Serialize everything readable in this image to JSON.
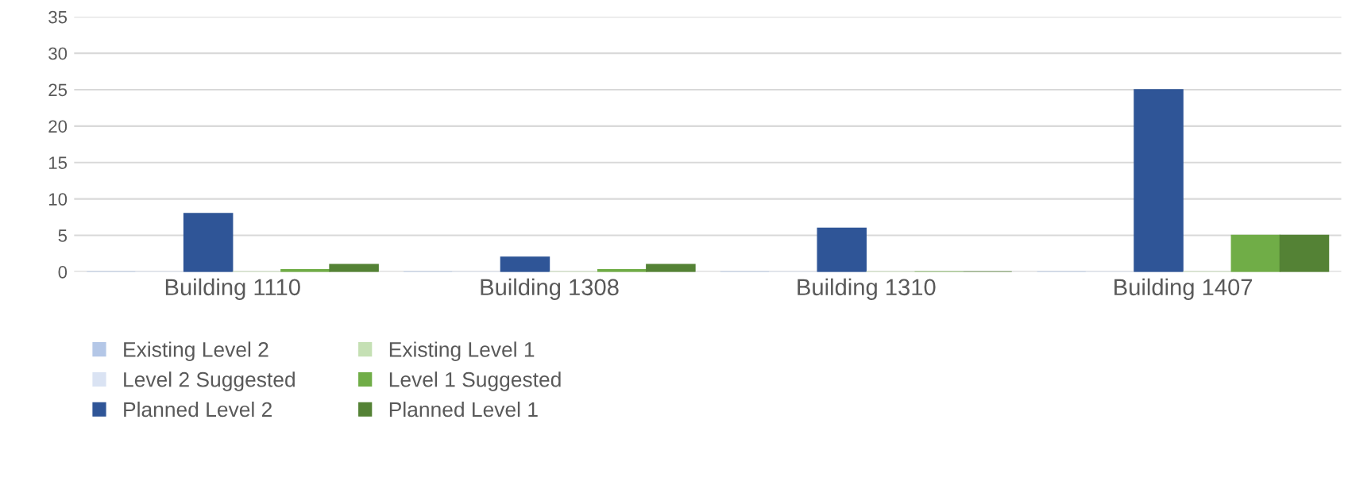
{
  "chart_data": {
    "type": "bar",
    "categories": [
      "Building 1110",
      "Building 1308",
      "Building 1310",
      "Building 1407"
    ],
    "series": [
      {
        "name": "Existing Level 2",
        "color": "#b4c7e7",
        "values": [
          0,
          0,
          0,
          0
        ]
      },
      {
        "name": "Level 2 Suggested",
        "color": "#dae3f3",
        "values": [
          0,
          0,
          0,
          0
        ]
      },
      {
        "name": "Planned Level 2",
        "color": "#2f5597",
        "values": [
          8,
          2,
          6,
          25
        ]
      },
      {
        "name": "Existing Level 1",
        "color": "#c5e0b4",
        "values": [
          0,
          0,
          0,
          0
        ]
      },
      {
        "name": "Level 1 Suggested",
        "color": "#70ad47",
        "values": [
          0.3,
          0.3,
          0,
          5
        ]
      },
      {
        "name": "Planned Level 1",
        "color": "#548235",
        "values": [
          1,
          1,
          0,
          5
        ]
      }
    ],
    "ylim": [
      0,
      35
    ],
    "yticks": [
      0,
      5,
      10,
      15,
      20,
      25,
      30,
      35
    ],
    "grid": "y",
    "legend": "bottom left"
  }
}
